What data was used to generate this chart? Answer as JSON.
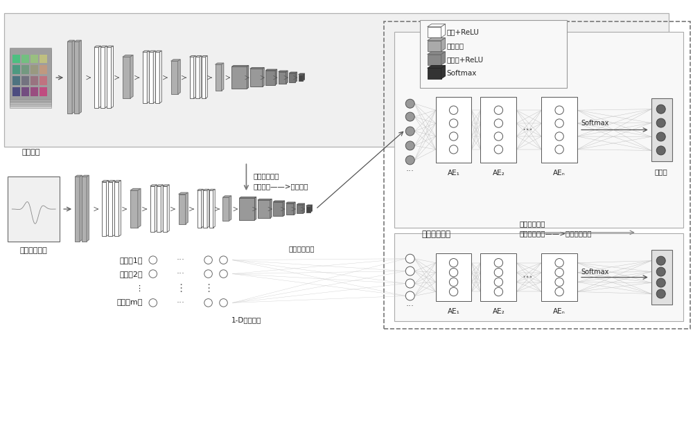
{
  "bg_color": "#ffffff",
  "text_color": "#222222",
  "natural_label": "自然图像",
  "monitor_label": "监控截屏图像",
  "feature_label": "截屏图像特征",
  "output_label": "输出层",
  "transfer1_line1": "第一层迁移：",
  "transfer1_line2": "自然图像——>截屏图像",
  "transfer2_line1": "第二层迁移：",
  "transfer2_line2": "截屏图像特征——>一维序列信号",
  "fusion_label": "迁移融合网络",
  "signal_label": "1-D序列信号",
  "sensor_labels": [
    "传感器1：",
    "传感器2：",
    "⋮",
    "传感器m："
  ],
  "legend_labels": [
    "卷积+ReLU",
    "最大池化",
    "全连接+ReLU",
    "Softmax"
  ],
  "ae_label1": "AE₁",
  "ae_label2": "AE₂",
  "ae_labeln": "AEₙ",
  "softmax_text": "Softmax"
}
